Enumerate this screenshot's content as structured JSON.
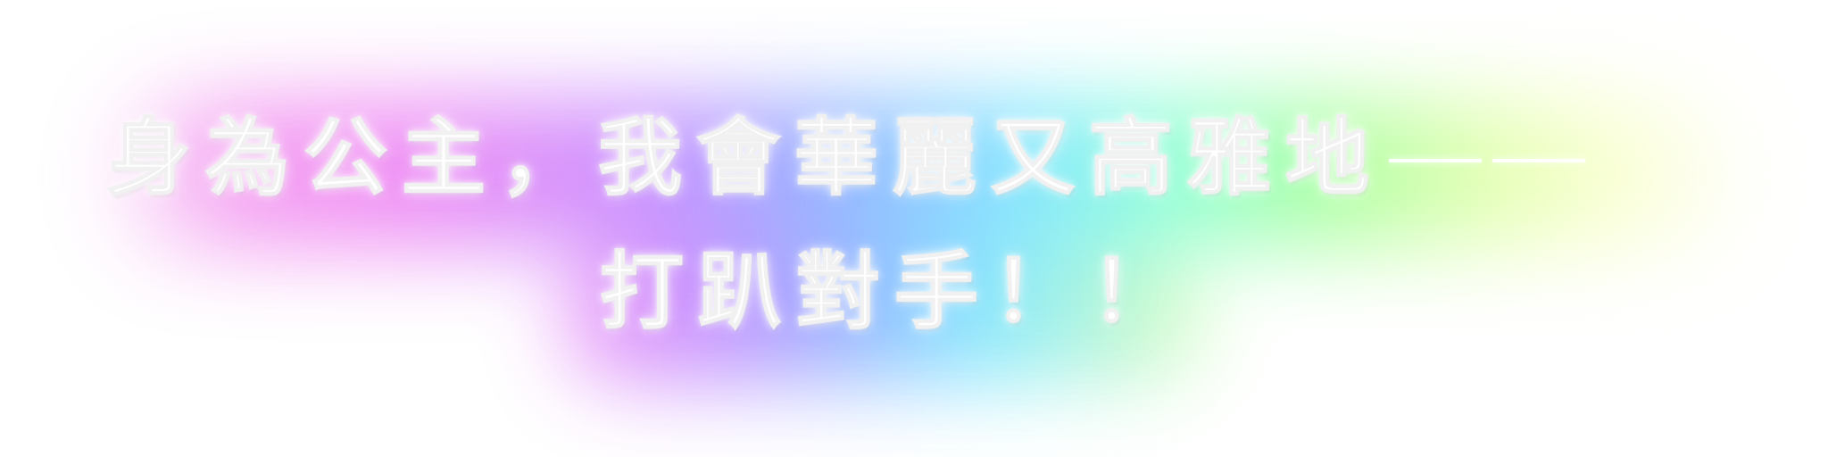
{
  "caption": {
    "line1_main": "身為公主，我會華麗又高雅地",
    "line1_dash_1": "—",
    "line1_dash_2": "—",
    "line2": "打趴對手！！"
  },
  "colors": {
    "text": "#ffffff",
    "glow_pink": "#ef86f3",
    "glow_purple": "#c48cff",
    "glow_blue": "#8fb0ff",
    "glow_cyan": "#7ee7ff",
    "glow_green": "#a7ff9d",
    "glow_yellow": "#e5ffb0"
  }
}
